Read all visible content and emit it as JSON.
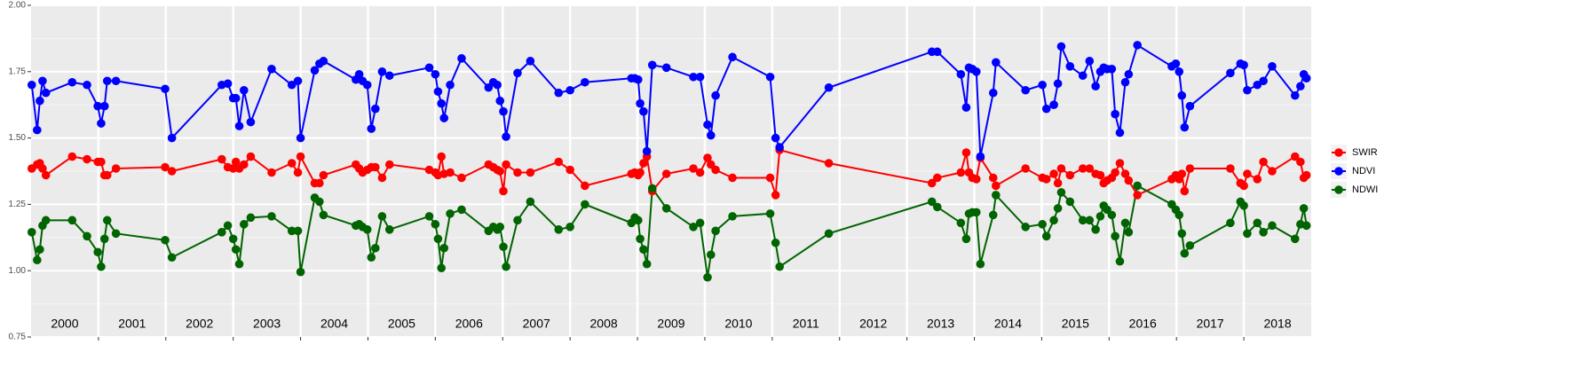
{
  "chart_data": {
    "type": "line",
    "x": [
      2000.01,
      2000.09,
      2000.13,
      2000.17,
      2000.22,
      2000.61,
      2000.83,
      2000.99,
      2001.04,
      2001.09,
      2001.13,
      2001.26,
      2001.99,
      2002.09,
      2002.83,
      2002.92,
      2003.0,
      2003.04,
      2003.09,
      2003.16,
      2003.26,
      2003.57,
      2003.87,
      2003.96,
      2004.0,
      2004.21,
      2004.28,
      2004.34,
      2004.82,
      2004.87,
      2004.92,
      2004.99,
      2005.05,
      2005.11,
      2005.21,
      2005.32,
      2005.91,
      2006.0,
      2006.04,
      2006.09,
      2006.13,
      2006.22,
      2006.39,
      2006.79,
      2006.86,
      2006.92,
      2006.96,
      2007.01,
      2007.05,
      2007.22,
      2007.41,
      2007.83,
      2008.0,
      2008.22,
      2008.91,
      2008.96,
      2009.01,
      2009.04,
      2009.09,
      2009.14,
      2009.22,
      2009.43,
      2009.83,
      2009.93,
      2010.04,
      2010.09,
      2010.16,
      2010.41,
      2010.97,
      2011.05,
      2011.11,
      2011.84,
      2013.37,
      2013.45,
      2013.8,
      2013.88,
      2013.92,
      2013.97,
      2014.03,
      2014.09,
      2014.28,
      2014.32,
      2014.76,
      2015.01,
      2015.07,
      2015.18,
      2015.24,
      2015.29,
      2015.42,
      2015.61,
      2015.71,
      2015.8,
      2015.87,
      2015.92,
      2015.97,
      2016.04,
      2016.09,
      2016.16,
      2016.24,
      2016.29,
      2016.42,
      2016.93,
      2016.99,
      2017.04,
      2017.08,
      2017.12,
      2017.2,
      2017.8,
      2017.95,
      2018.0,
      2018.05,
      2018.2,
      2018.29,
      2018.42,
      2018.76,
      2018.84,
      2018.89,
      2018.93
    ],
    "series": [
      {
        "name": "SWIR",
        "color": "#ff0000",
        "values": [
          1.385,
          1.4,
          1.405,
          1.385,
          1.36,
          1.43,
          1.42,
          1.41,
          1.41,
          1.36,
          1.36,
          1.385,
          1.39,
          1.375,
          1.42,
          1.39,
          1.385,
          1.41,
          1.385,
          1.4,
          1.43,
          1.37,
          1.405,
          1.37,
          1.43,
          1.33,
          1.33,
          1.36,
          1.4,
          1.385,
          1.37,
          1.38,
          1.39,
          1.39,
          1.35,
          1.4,
          1.38,
          1.37,
          1.36,
          1.43,
          1.365,
          1.37,
          1.35,
          1.4,
          1.39,
          1.38,
          1.375,
          1.3,
          1.4,
          1.37,
          1.37,
          1.41,
          1.38,
          1.32,
          1.365,
          1.37,
          1.36,
          1.37,
          1.405,
          1.43,
          1.3,
          1.365,
          1.385,
          1.37,
          1.425,
          1.4,
          1.38,
          1.35,
          1.35,
          1.285,
          1.455,
          1.405,
          1.33,
          1.35,
          1.37,
          1.445,
          1.37,
          1.35,
          1.345,
          1.425,
          1.35,
          1.32,
          1.385,
          1.35,
          1.345,
          1.365,
          1.33,
          1.385,
          1.36,
          1.385,
          1.385,
          1.365,
          1.36,
          1.33,
          1.34,
          1.35,
          1.37,
          1.405,
          1.365,
          1.34,
          1.285,
          1.345,
          1.36,
          1.345,
          1.365,
          1.3,
          1.385,
          1.385,
          1.33,
          1.32,
          1.365,
          1.345,
          1.41,
          1.375,
          1.43,
          1.41,
          1.35,
          1.36
        ]
      },
      {
        "name": "NDVI",
        "color": "#0000ff",
        "values": [
          1.7,
          1.53,
          1.64,
          1.715,
          1.67,
          1.71,
          1.7,
          1.62,
          1.555,
          1.62,
          1.715,
          1.715,
          1.685,
          1.5,
          1.7,
          1.705,
          1.65,
          1.65,
          1.545,
          1.68,
          1.56,
          1.76,
          1.7,
          1.715,
          1.5,
          1.755,
          1.78,
          1.79,
          1.72,
          1.74,
          1.715,
          1.7,
          1.535,
          1.61,
          1.75,
          1.735,
          1.765,
          1.74,
          1.675,
          1.63,
          1.575,
          1.7,
          1.8,
          1.69,
          1.71,
          1.7,
          1.64,
          1.6,
          1.505,
          1.745,
          1.79,
          1.67,
          1.68,
          1.71,
          1.725,
          1.725,
          1.72,
          1.63,
          1.6,
          1.45,
          1.775,
          1.765,
          1.73,
          1.73,
          1.55,
          1.51,
          1.66,
          1.805,
          1.73,
          1.5,
          1.465,
          1.69,
          1.825,
          1.825,
          1.74,
          1.615,
          1.765,
          1.76,
          1.75,
          1.43,
          1.67,
          1.785,
          1.68,
          1.7,
          1.61,
          1.625,
          1.705,
          1.845,
          1.77,
          1.735,
          1.79,
          1.695,
          1.75,
          1.765,
          1.76,
          1.76,
          1.59,
          1.52,
          1.71,
          1.74,
          1.85,
          1.77,
          1.78,
          1.75,
          1.66,
          1.54,
          1.62,
          1.745,
          1.78,
          1.775,
          1.68,
          1.7,
          1.715,
          1.77,
          1.66,
          1.695,
          1.74,
          1.725
        ]
      },
      {
        "name": "NDWI",
        "color": "#006400",
        "values": [
          1.145,
          1.04,
          1.08,
          1.17,
          1.19,
          1.19,
          1.13,
          1.07,
          1.015,
          1.12,
          1.19,
          1.14,
          1.115,
          1.05,
          1.145,
          1.17,
          1.12,
          1.08,
          1.025,
          1.175,
          1.2,
          1.205,
          1.15,
          1.15,
          0.995,
          1.275,
          1.26,
          1.21,
          1.17,
          1.175,
          1.165,
          1.155,
          1.05,
          1.085,
          1.205,
          1.155,
          1.205,
          1.175,
          1.12,
          1.01,
          1.085,
          1.215,
          1.23,
          1.15,
          1.165,
          1.155,
          1.165,
          1.09,
          1.015,
          1.19,
          1.26,
          1.155,
          1.165,
          1.25,
          1.18,
          1.2,
          1.19,
          1.12,
          1.08,
          1.025,
          1.31,
          1.235,
          1.165,
          1.18,
          0.975,
          1.06,
          1.15,
          1.205,
          1.215,
          1.105,
          1.015,
          1.14,
          1.26,
          1.24,
          1.18,
          1.12,
          1.215,
          1.22,
          1.22,
          1.025,
          1.21,
          1.285,
          1.165,
          1.175,
          1.13,
          1.19,
          1.235,
          1.295,
          1.26,
          1.19,
          1.19,
          1.155,
          1.205,
          1.245,
          1.23,
          1.21,
          1.13,
          1.035,
          1.18,
          1.145,
          1.32,
          1.25,
          1.23,
          1.21,
          1.14,
          1.065,
          1.095,
          1.18,
          1.26,
          1.245,
          1.14,
          1.18,
          1.145,
          1.17,
          1.12,
          1.175,
          1.235,
          1.17
        ]
      }
    ],
    "xlim": [
      2000,
      2019
    ],
    "xticks": [
      2001,
      2002,
      2003,
      2004,
      2005,
      2006,
      2007,
      2008,
      2009,
      2010,
      2011,
      2012,
      2013,
      2014,
      2015,
      2016,
      2017,
      2018
    ],
    "x_labels": [
      {
        "value": 2000.5,
        "label": "2000"
      },
      {
        "value": 2001.5,
        "label": "2001"
      },
      {
        "value": 2002.5,
        "label": "2002"
      },
      {
        "value": 2003.5,
        "label": "2003"
      },
      {
        "value": 2004.5,
        "label": "2004"
      },
      {
        "value": 2005.5,
        "label": "2005"
      },
      {
        "value": 2006.5,
        "label": "2006"
      },
      {
        "value": 2007.5,
        "label": "2007"
      },
      {
        "value": 2008.5,
        "label": "2008"
      },
      {
        "value": 2009.5,
        "label": "2009"
      },
      {
        "value": 2010.5,
        "label": "2010"
      },
      {
        "value": 2011.5,
        "label": "2011"
      },
      {
        "value": 2012.5,
        "label": "2012"
      },
      {
        "value": 2013.5,
        "label": "2013"
      },
      {
        "value": 2014.5,
        "label": "2014"
      },
      {
        "value": 2015.5,
        "label": "2015"
      },
      {
        "value": 2016.5,
        "label": "2016"
      },
      {
        "value": 2017.5,
        "label": "2017"
      },
      {
        "value": 2018.5,
        "label": "2018"
      }
    ],
    "ylim": [
      0.75,
      2.0
    ],
    "yticks": [
      {
        "value": 0.75,
        "label": "0.75"
      },
      {
        "value": 1.0,
        "label": "1.00"
      },
      {
        "value": 1.25,
        "label": "1.25"
      },
      {
        "value": 1.5,
        "label": "1.50"
      },
      {
        "value": 1.75,
        "label": "1.75"
      },
      {
        "value": 2.0,
        "label": "2.00"
      }
    ],
    "grid": true,
    "legend": "right"
  }
}
